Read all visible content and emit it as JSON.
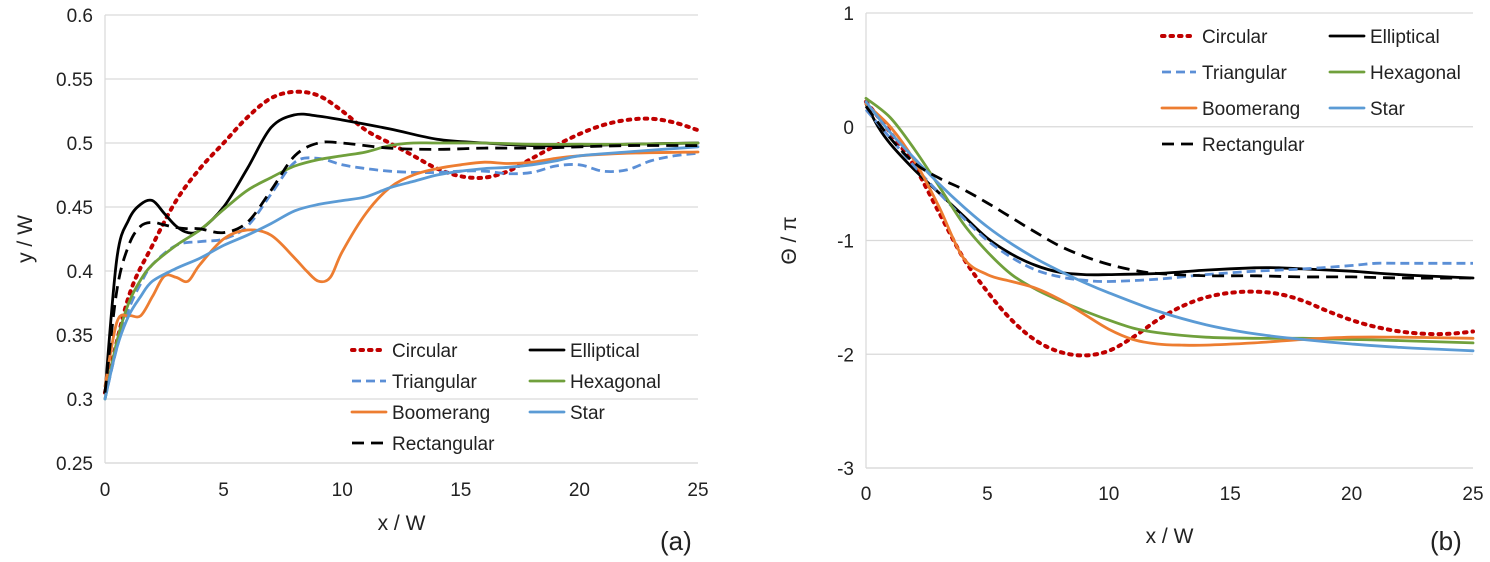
{
  "styles": [
    {
      "name": "Circular",
      "color": "#c00000",
      "dash": "dot"
    },
    {
      "name": "Elliptical",
      "color": "#000000",
      "dash": "solid"
    },
    {
      "name": "Triangular",
      "color": "#5b8fd6",
      "dash": "dash"
    },
    {
      "name": "Hexagonal",
      "color": "#70a03c",
      "dash": "solid"
    },
    {
      "name": "Boomerang",
      "color": "#ed7d31",
      "dash": "solid"
    },
    {
      "name": "Star",
      "color": "#5b9bd5",
      "dash": "solid"
    },
    {
      "name": "Rectangular",
      "color": "#000000",
      "dash": "longdash"
    }
  ],
  "chart_data": [
    {
      "type": "line",
      "panel": "(a)",
      "xlabel": "x / W",
      "ylabel": "y / W",
      "xlim": [
        0,
        25
      ],
      "ylim": [
        0.25,
        0.6
      ],
      "xticks": [
        "0",
        "5",
        "10",
        "15",
        "20",
        "25"
      ],
      "yticks": [
        "0.25",
        "0.3",
        "0.35",
        "0.4",
        "0.45",
        "0.5",
        "0.55",
        "0.6"
      ],
      "legend_position": "bottom-right",
      "series": [
        {
          "name": "Circular",
          "x": [
            0,
            1,
            2,
            3,
            4,
            5,
            6,
            7,
            8,
            9,
            10,
            11,
            12,
            13,
            14,
            15,
            16,
            17,
            18,
            19,
            20,
            21,
            22,
            23,
            24,
            25
          ],
          "y": [
            0.305,
            0.38,
            0.42,
            0.455,
            0.48,
            0.5,
            0.52,
            0.535,
            0.54,
            0.537,
            0.525,
            0.51,
            0.5,
            0.49,
            0.48,
            0.474,
            0.473,
            0.478,
            0.488,
            0.498,
            0.507,
            0.514,
            0.518,
            0.519,
            0.516,
            0.51
          ]
        },
        {
          "name": "Elliptical",
          "x": [
            0,
            0.5,
            1,
            1.5,
            2,
            2.5,
            3,
            3.5,
            4,
            5,
            6,
            7,
            8,
            9,
            10,
            12,
            14,
            16,
            18,
            20,
            22,
            25
          ],
          "y": [
            0.305,
            0.41,
            0.44,
            0.452,
            0.455,
            0.445,
            0.435,
            0.43,
            0.432,
            0.45,
            0.48,
            0.512,
            0.522,
            0.521,
            0.518,
            0.511,
            0.503,
            0.5,
            0.498,
            0.498,
            0.499,
            0.5
          ]
        },
        {
          "name": "Triangular",
          "x": [
            0,
            0.5,
            1,
            1.5,
            2,
            3,
            4,
            5,
            6,
            7,
            8,
            9,
            10,
            11,
            12,
            13,
            14,
            15,
            16,
            17,
            18,
            19,
            20,
            21,
            22,
            23,
            24,
            25
          ],
          "y": [
            0.3,
            0.34,
            0.37,
            0.39,
            0.405,
            0.42,
            0.423,
            0.425,
            0.435,
            0.46,
            0.485,
            0.488,
            0.483,
            0.48,
            0.478,
            0.477,
            0.477,
            0.478,
            0.478,
            0.476,
            0.477,
            0.482,
            0.483,
            0.478,
            0.479,
            0.486,
            0.49,
            0.492
          ]
        },
        {
          "name": "Hexagonal",
          "x": [
            0,
            0.5,
            1,
            1.5,
            2,
            3,
            4,
            5,
            6,
            7,
            8,
            9,
            10,
            11,
            12,
            13,
            14,
            16,
            18,
            20,
            22,
            25
          ],
          "y": [
            0.3,
            0.345,
            0.375,
            0.393,
            0.405,
            0.42,
            0.432,
            0.448,
            0.463,
            0.473,
            0.482,
            0.487,
            0.49,
            0.493,
            0.498,
            0.5,
            0.5,
            0.5,
            0.499,
            0.499,
            0.499,
            0.5
          ]
        },
        {
          "name": "Boomerang",
          "x": [
            0,
            0.5,
            1,
            1.5,
            2,
            2.5,
            3,
            3.5,
            4,
            5,
            6,
            7,
            8,
            8.5,
            9,
            9.5,
            10,
            11,
            12,
            13,
            14,
            15,
            16,
            17,
            18,
            19,
            20,
            22,
            25
          ],
          "y": [
            0.31,
            0.36,
            0.365,
            0.365,
            0.38,
            0.396,
            0.395,
            0.392,
            0.405,
            0.425,
            0.432,
            0.428,
            0.41,
            0.4,
            0.392,
            0.395,
            0.415,
            0.445,
            0.465,
            0.475,
            0.48,
            0.483,
            0.485,
            0.484,
            0.485,
            0.488,
            0.49,
            0.492,
            0.493
          ]
        },
        {
          "name": "Star",
          "x": [
            0,
            0.5,
            1,
            1.5,
            2,
            3,
            4,
            5,
            6,
            7,
            8,
            9,
            10,
            11,
            12,
            13,
            14,
            15,
            16,
            17,
            18,
            19,
            20,
            22,
            25
          ],
          "y": [
            0.3,
            0.34,
            0.365,
            0.38,
            0.392,
            0.402,
            0.41,
            0.42,
            0.428,
            0.437,
            0.447,
            0.452,
            0.455,
            0.458,
            0.465,
            0.47,
            0.475,
            0.478,
            0.48,
            0.481,
            0.483,
            0.486,
            0.49,
            0.493,
            0.497
          ]
        },
        {
          "name": "Rectangular",
          "x": [
            0,
            0.5,
            1,
            1.5,
            2,
            2.5,
            3,
            3.5,
            4,
            5,
            6,
            7,
            8,
            9,
            10,
            12,
            14,
            16,
            18,
            20,
            22,
            25
          ],
          "y": [
            0.305,
            0.385,
            0.42,
            0.435,
            0.438,
            0.436,
            0.434,
            0.433,
            0.433,
            0.43,
            0.438,
            0.463,
            0.49,
            0.5,
            0.5,
            0.496,
            0.495,
            0.496,
            0.496,
            0.497,
            0.498,
            0.498
          ]
        }
      ]
    },
    {
      "type": "line",
      "panel": "(b)",
      "xlabel": "x / W",
      "ylabel": "Θ / π",
      "xlim": [
        0,
        25
      ],
      "ylim": [
        -3,
        1
      ],
      "xticks": [
        "0",
        "5",
        "10",
        "15",
        "20",
        "25"
      ],
      "yticks": [
        "-3",
        "-2",
        "-1",
        "0",
        "1"
      ],
      "legend_position": "top-right",
      "series": [
        {
          "name": "Circular",
          "x": [
            0,
            1,
            2,
            3,
            4,
            5,
            6,
            7,
            8,
            9,
            10,
            11,
            12,
            13,
            14,
            15,
            16,
            17,
            18,
            19,
            20,
            21,
            22,
            23,
            24,
            25
          ],
          "y": [
            0.22,
            -0.05,
            -0.35,
            -0.75,
            -1.15,
            -1.45,
            -1.7,
            -1.88,
            -1.98,
            -2.01,
            -1.97,
            -1.85,
            -1.7,
            -1.58,
            -1.5,
            -1.46,
            -1.45,
            -1.47,
            -1.53,
            -1.62,
            -1.7,
            -1.76,
            -1.8,
            -1.82,
            -1.82,
            -1.8
          ]
        },
        {
          "name": "Elliptical",
          "x": [
            0,
            0.5,
            1,
            2,
            3,
            4,
            5,
            6,
            7,
            8,
            9,
            10,
            12,
            14,
            16,
            17,
            18,
            20,
            22,
            25
          ],
          "y": [
            0.2,
            0.0,
            -0.15,
            -0.38,
            -0.58,
            -0.78,
            -0.98,
            -1.12,
            -1.22,
            -1.28,
            -1.3,
            -1.3,
            -1.29,
            -1.26,
            -1.24,
            -1.24,
            -1.25,
            -1.27,
            -1.3,
            -1.33
          ]
        },
        {
          "name": "Triangular",
          "x": [
            0,
            1,
            2,
            3,
            4,
            5,
            6,
            7,
            8,
            9,
            10,
            12,
            14,
            16,
            18,
            20,
            21,
            22,
            25
          ],
          "y": [
            0.15,
            -0.1,
            -0.35,
            -0.58,
            -0.8,
            -1.0,
            -1.15,
            -1.26,
            -1.32,
            -1.35,
            -1.36,
            -1.34,
            -1.3,
            -1.27,
            -1.25,
            -1.22,
            -1.2,
            -1.2,
            -1.2
          ]
        },
        {
          "name": "Hexagonal",
          "x": [
            0,
            1,
            2,
            3,
            4,
            5,
            6,
            7,
            8,
            9,
            10,
            11,
            12,
            14,
            16,
            18,
            20,
            22,
            25
          ],
          "y": [
            0.25,
            0.08,
            -0.2,
            -0.52,
            -0.85,
            -1.1,
            -1.3,
            -1.43,
            -1.53,
            -1.62,
            -1.7,
            -1.77,
            -1.81,
            -1.85,
            -1.86,
            -1.86,
            -1.87,
            -1.88,
            -1.9
          ]
        },
        {
          "name": "Boomerang",
          "x": [
            0,
            1,
            2,
            3,
            4,
            5,
            6,
            7,
            8,
            9,
            10,
            11,
            12,
            13,
            14,
            16,
            18,
            20,
            22,
            25
          ],
          "y": [
            0.2,
            0.0,
            -0.3,
            -0.7,
            -1.15,
            -1.3,
            -1.36,
            -1.42,
            -1.52,
            -1.65,
            -1.78,
            -1.87,
            -1.91,
            -1.92,
            -1.92,
            -1.9,
            -1.87,
            -1.85,
            -1.85,
            -1.86
          ]
        },
        {
          "name": "Star",
          "x": [
            0,
            1,
            2,
            3,
            4,
            5,
            6,
            7,
            8,
            9,
            10,
            12,
            14,
            16,
            18,
            20,
            22,
            25
          ],
          "y": [
            0.22,
            -0.05,
            -0.28,
            -0.5,
            -0.7,
            -0.88,
            -1.03,
            -1.16,
            -1.27,
            -1.37,
            -1.46,
            -1.62,
            -1.74,
            -1.82,
            -1.87,
            -1.91,
            -1.94,
            -1.97
          ]
        },
        {
          "name": "Rectangular",
          "x": [
            0,
            1,
            2,
            3,
            4,
            5,
            6,
            7,
            8,
            9,
            10,
            11,
            12,
            14,
            16,
            18,
            20,
            22,
            25
          ],
          "y": [
            0.18,
            -0.1,
            -0.32,
            -0.45,
            -0.55,
            -0.67,
            -0.8,
            -0.93,
            -1.05,
            -1.14,
            -1.21,
            -1.26,
            -1.29,
            -1.31,
            -1.31,
            -1.32,
            -1.32,
            -1.33,
            -1.33
          ]
        }
      ]
    }
  ]
}
